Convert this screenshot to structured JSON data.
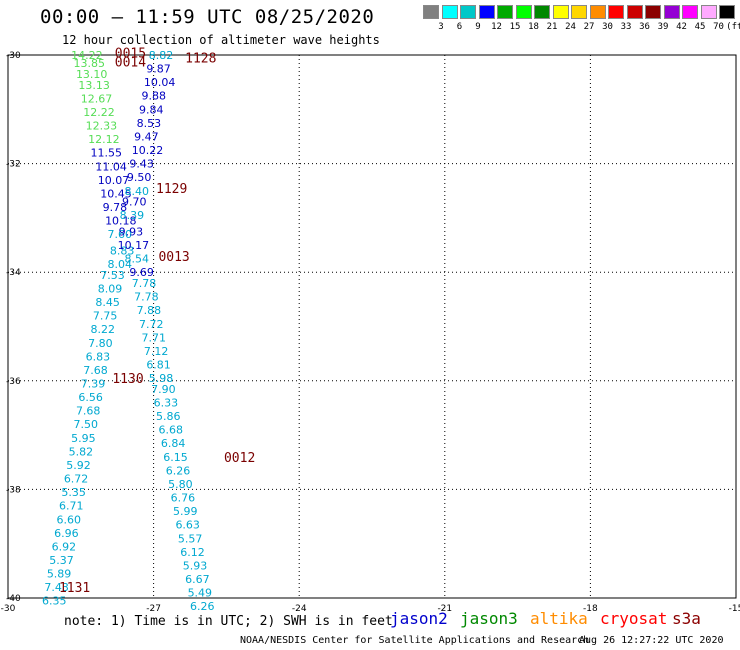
{
  "header": {
    "title": "00:00 – 11:59 UTC 08/25/2020",
    "subtitle": "12 hour collection of altimeter wave heights"
  },
  "legend": {
    "colors": [
      "#808080",
      "#00ffff",
      "#00c8c8",
      "#0000ff",
      "#00aa00",
      "#00ff00",
      "#008800",
      "#ffff00",
      "#ffd700",
      "#ff8c00",
      "#ff0000",
      "#cc0000",
      "#8b0000",
      "#9400d3",
      "#ff00ff",
      "#ffaaff",
      "#000000"
    ],
    "labels": [
      "3",
      "6",
      "9",
      "12",
      "15",
      "18",
      "21",
      "24",
      "27",
      "30",
      "33",
      "36",
      "39",
      "42",
      "45",
      "70",
      "(ft)"
    ]
  },
  "chart_data": {
    "type": "scatter",
    "title": "12 hour collection of altimeter wave heights",
    "xlim": [
      -30,
      -15
    ],
    "ylim": [
      -40,
      -30
    ],
    "x_ticks": [
      "-30",
      "-27",
      "-24",
      "-21",
      "-18",
      "-15"
    ],
    "y_ticks": [
      "-30",
      "-32",
      "-34",
      "-36",
      "-38",
      "-40"
    ],
    "grid": true,
    "series_colors": {
      "green": "#55dd55",
      "navy": "#0000c0",
      "cyan": "#00a8d0",
      "time": "#7a0000"
    },
    "points": [
      {
        "lon": -28.7,
        "lat": -30.0,
        "v": "14.22",
        "c": "green"
      },
      {
        "lon": -28.65,
        "lat": -30.15,
        "v": "13.85",
        "c": "green"
      },
      {
        "lon": -28.6,
        "lat": -30.35,
        "v": "13.10",
        "c": "green"
      },
      {
        "lon": -28.55,
        "lat": -30.55,
        "v": "13.13",
        "c": "green"
      },
      {
        "lon": -28.5,
        "lat": -30.8,
        "v": "12.67",
        "c": "green"
      },
      {
        "lon": -28.45,
        "lat": -31.05,
        "v": "12.22",
        "c": "green"
      },
      {
        "lon": -28.4,
        "lat": -31.3,
        "v": "12.33",
        "c": "green"
      },
      {
        "lon": -28.35,
        "lat": -31.55,
        "v": "12.12",
        "c": "green"
      },
      {
        "lon": -28.3,
        "lat": -31.8,
        "v": "11.55",
        "c": "navy"
      },
      {
        "lon": -28.2,
        "lat": -32.05,
        "v": "11.04",
        "c": "navy"
      },
      {
        "lon": -28.15,
        "lat": -32.3,
        "v": "10.07",
        "c": "navy"
      },
      {
        "lon": -28.1,
        "lat": -32.55,
        "v": "10.45",
        "c": "navy"
      },
      {
        "lon": -28.05,
        "lat": -32.8,
        "v": "9.78",
        "c": "navy"
      },
      {
        "lon": -28.0,
        "lat": -33.05,
        "v": "10.18",
        "c": "navy"
      },
      {
        "lon": -27.95,
        "lat": -33.3,
        "v": "7.60",
        "c": "cyan"
      },
      {
        "lon": -27.9,
        "lat": -33.6,
        "v": "8.83",
        "c": "cyan"
      },
      {
        "lon": -27.95,
        "lat": -33.85,
        "v": "8.04",
        "c": "cyan"
      },
      {
        "lon": -28.1,
        "lat": -34.05,
        "v": "7.53",
        "c": "cyan"
      },
      {
        "lon": -28.15,
        "lat": -34.3,
        "v": "8.09",
        "c": "cyan"
      },
      {
        "lon": -28.2,
        "lat": -34.55,
        "v": "8.45",
        "c": "cyan"
      },
      {
        "lon": -28.25,
        "lat": -34.8,
        "v": "7.75",
        "c": "cyan"
      },
      {
        "lon": -28.3,
        "lat": -35.05,
        "v": "8.22",
        "c": "cyan"
      },
      {
        "lon": -28.35,
        "lat": -35.3,
        "v": "7.80",
        "c": "cyan"
      },
      {
        "lon": -28.4,
        "lat": -35.55,
        "v": "6.83",
        "c": "cyan"
      },
      {
        "lon": -28.45,
        "lat": -35.8,
        "v": "7.68",
        "c": "cyan"
      },
      {
        "lon": -28.5,
        "lat": -36.05,
        "v": "7.39",
        "c": "cyan"
      },
      {
        "lon": -28.55,
        "lat": -36.3,
        "v": "6.56",
        "c": "cyan"
      },
      {
        "lon": -28.6,
        "lat": -36.55,
        "v": "7.68",
        "c": "cyan"
      },
      {
        "lon": -28.65,
        "lat": -36.8,
        "v": "7.50",
        "c": "cyan"
      },
      {
        "lon": -28.7,
        "lat": -37.05,
        "v": "5.95",
        "c": "cyan"
      },
      {
        "lon": -28.75,
        "lat": -37.3,
        "v": "5.82",
        "c": "cyan"
      },
      {
        "lon": -28.8,
        "lat": -37.55,
        "v": "5.92",
        "c": "cyan"
      },
      {
        "lon": -28.85,
        "lat": -37.8,
        "v": "6.72",
        "c": "cyan"
      },
      {
        "lon": -28.9,
        "lat": -38.05,
        "v": "5.35",
        "c": "cyan"
      },
      {
        "lon": -28.95,
        "lat": -38.3,
        "v": "6.71",
        "c": "cyan"
      },
      {
        "lon": -29.0,
        "lat": -38.55,
        "v": "6.60",
        "c": "cyan"
      },
      {
        "lon": -29.05,
        "lat": -38.8,
        "v": "6.96",
        "c": "cyan"
      },
      {
        "lon": -29.1,
        "lat": -39.05,
        "v": "6.92",
        "c": "cyan"
      },
      {
        "lon": -29.15,
        "lat": -39.3,
        "v": "5.37",
        "c": "cyan"
      },
      {
        "lon": -29.2,
        "lat": -39.55,
        "v": "5.89",
        "c": "cyan"
      },
      {
        "lon": -29.25,
        "lat": -39.8,
        "v": "7.43",
        "c": "cyan"
      },
      {
        "lon": -29.3,
        "lat": -40.05,
        "v": "6.35",
        "c": "cyan"
      },
      {
        "lon": -27.1,
        "lat": -30.0,
        "v": "8.82",
        "c": "cyan"
      },
      {
        "lon": -27.15,
        "lat": -30.25,
        "v": "9.87",
        "c": "navy"
      },
      {
        "lon": -27.2,
        "lat": -30.5,
        "v": "10.04",
        "c": "navy"
      },
      {
        "lon": -27.25,
        "lat": -30.75,
        "v": "9.88",
        "c": "navy"
      },
      {
        "lon": -27.3,
        "lat": -31.0,
        "v": "9.84",
        "c": "navy"
      },
      {
        "lon": -27.35,
        "lat": -31.25,
        "v": "8.53",
        "c": "navy"
      },
      {
        "lon": -27.4,
        "lat": -31.5,
        "v": "9.47",
        "c": "navy"
      },
      {
        "lon": -27.45,
        "lat": -31.75,
        "v": "10.22",
        "c": "navy"
      },
      {
        "lon": -27.5,
        "lat": -32.0,
        "v": "9.43",
        "c": "navy"
      },
      {
        "lon": -27.55,
        "lat": -32.25,
        "v": "9.50",
        "c": "navy"
      },
      {
        "lon": -27.6,
        "lat": -32.5,
        "v": "8.40",
        "c": "cyan"
      },
      {
        "lon": -27.65,
        "lat": -32.7,
        "v": "9.70",
        "c": "navy"
      },
      {
        "lon": -27.7,
        "lat": -32.95,
        "v": "8.39",
        "c": "cyan"
      },
      {
        "lon": -27.72,
        "lat": -33.25,
        "v": "9.93",
        "c": "navy"
      },
      {
        "lon": -27.74,
        "lat": -33.5,
        "v": "10.17",
        "c": "navy"
      },
      {
        "lon": -27.6,
        "lat": -33.75,
        "v": "8.54",
        "c": "cyan"
      },
      {
        "lon": -27.5,
        "lat": -34.0,
        "v": "9.69",
        "c": "navy"
      },
      {
        "lon": -27.45,
        "lat": -34.2,
        "v": "7.78",
        "c": "cyan"
      },
      {
        "lon": -27.4,
        "lat": -34.45,
        "v": "7.78",
        "c": "cyan"
      },
      {
        "lon": -27.35,
        "lat": -34.7,
        "v": "7.88",
        "c": "cyan"
      },
      {
        "lon": -27.3,
        "lat": -34.95,
        "v": "7.72",
        "c": "cyan"
      },
      {
        "lon": -27.25,
        "lat": -35.2,
        "v": "7.71",
        "c": "cyan"
      },
      {
        "lon": -27.2,
        "lat": -35.45,
        "v": "7.12",
        "c": "cyan"
      },
      {
        "lon": -27.15,
        "lat": -35.7,
        "v": "6.81",
        "c": "cyan"
      },
      {
        "lon": -27.1,
        "lat": -35.95,
        "v": "5.98",
        "c": "cyan"
      },
      {
        "lon": -27.05,
        "lat": -36.15,
        "v": "7.90",
        "c": "cyan"
      },
      {
        "lon": -27.0,
        "lat": -36.4,
        "v": "6.33",
        "c": "cyan"
      },
      {
        "lon": -26.95,
        "lat": -36.65,
        "v": "5.86",
        "c": "cyan"
      },
      {
        "lon": -26.9,
        "lat": -36.9,
        "v": "6.68",
        "c": "cyan"
      },
      {
        "lon": -26.85,
        "lat": -37.15,
        "v": "6.84",
        "c": "cyan"
      },
      {
        "lon": -26.8,
        "lat": -37.4,
        "v": "6.15",
        "c": "cyan"
      },
      {
        "lon": -26.75,
        "lat": -37.65,
        "v": "6.26",
        "c": "cyan"
      },
      {
        "lon": -26.7,
        "lat": -37.9,
        "v": "5.80",
        "c": "cyan"
      },
      {
        "lon": -26.65,
        "lat": -38.15,
        "v": "6.76",
        "c": "cyan"
      },
      {
        "lon": -26.6,
        "lat": -38.4,
        "v": "5.99",
        "c": "cyan"
      },
      {
        "lon": -26.55,
        "lat": -38.65,
        "v": "6.63",
        "c": "cyan"
      },
      {
        "lon": -26.5,
        "lat": -38.9,
        "v": "5.57",
        "c": "cyan"
      },
      {
        "lon": -26.45,
        "lat": -39.15,
        "v": "6.12",
        "c": "cyan"
      },
      {
        "lon": -26.4,
        "lat": -39.4,
        "v": "5.93",
        "c": "cyan"
      },
      {
        "lon": -26.35,
        "lat": -39.65,
        "v": "6.67",
        "c": "cyan"
      },
      {
        "lon": -26.3,
        "lat": -39.9,
        "v": "5.49",
        "c": "cyan"
      },
      {
        "lon": -26.25,
        "lat": -40.15,
        "v": "6.26",
        "c": "cyan"
      }
    ],
    "time_labels": [
      {
        "lon": -27.8,
        "lat": -29.95,
        "t": "0015"
      },
      {
        "lon": -27.8,
        "lat": -30.12,
        "t": "0014"
      },
      {
        "lon": -26.35,
        "lat": -30.05,
        "t": "1128"
      },
      {
        "lon": -26.95,
        "lat": -32.45,
        "t": "1129"
      },
      {
        "lon": -26.9,
        "lat": -33.7,
        "t": "0013"
      },
      {
        "lon": -27.85,
        "lat": -35.95,
        "t": "1130"
      },
      {
        "lon": -25.55,
        "lat": -37.4,
        "t": "0012"
      },
      {
        "lon": -28.95,
        "lat": -39.8,
        "t": "1131"
      }
    ]
  },
  "footer": {
    "note": "note:  1) Time is in UTC;  2) SWH is in feet",
    "satellites": [
      {
        "name": "jason2",
        "color": "#0000cc"
      },
      {
        "name": "jason3",
        "color": "#008800"
      },
      {
        "name": "altika",
        "color": "#ff8c00"
      },
      {
        "name": "cryosat",
        "color": "#ff0000"
      },
      {
        "name": "s3a",
        "color": "#8b0000"
      }
    ],
    "credit": "NOAA/NESDIS Center for Satellite Applications and Research",
    "timestamp": "Aug 26 12:27:22 UTC 2020"
  }
}
